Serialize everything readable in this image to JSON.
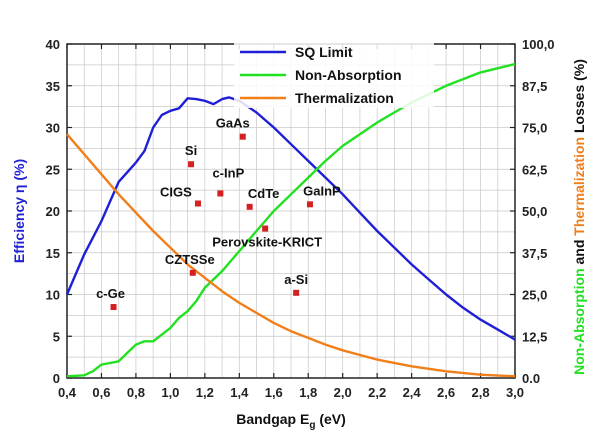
{
  "chart_data": {
    "type": "line",
    "xlabel": "Bandgap E",
    "xlabel_sub": "g",
    "xlabel_unit": " (eV)",
    "ylabel": "Efficiency η (%)",
    "y2label_prefix": "Non-Absorption",
    "y2label_mid": " and ",
    "y2label_suffix": "Thermalization",
    "y2label_end": " Losses (%)",
    "xlim": [
      0.4,
      3.0
    ],
    "ylim": [
      0,
      40
    ],
    "y2lim": [
      0,
      100
    ],
    "grid": true,
    "legend_position": "top-center",
    "x_ticks": [
      "0,4",
      "0,6",
      "0,8",
      "1,0",
      "1,2",
      "1,4",
      "1,6",
      "1,8",
      "2,0",
      "2,2",
      "2,4",
      "2,6",
      "2,8",
      "3,0"
    ],
    "y_ticks": [
      "0",
      "5",
      "10",
      "15",
      "20",
      "25",
      "30",
      "35",
      "40"
    ],
    "y2_ticks": [
      "0.0",
      "12,5",
      "25,0",
      "37,5",
      "50,0",
      "62,5",
      "75,0",
      "87,5",
      "100,0"
    ],
    "colors": {
      "sq": "#1f1fd6",
      "nonabs": "#22e022",
      "therm": "#f07f1a",
      "marker": "#d42020",
      "grid": "#c8c8c8",
      "axis": "#222222"
    },
    "series": [
      {
        "name": "SQ Limit",
        "axis": "left",
        "x": [
          0.4,
          0.5,
          0.6,
          0.7,
          0.8,
          0.85,
          0.9,
          0.95,
          1.0,
          1.05,
          1.1,
          1.15,
          1.2,
          1.25,
          1.3,
          1.34,
          1.4,
          1.45,
          1.5,
          1.6,
          1.7,
          1.8,
          1.9,
          2.0,
          2.1,
          2.2,
          2.3,
          2.4,
          2.5,
          2.6,
          2.7,
          2.8,
          2.9,
          3.0
        ],
        "y": [
          10.0,
          14.8,
          18.8,
          23.5,
          25.8,
          27.2,
          30.0,
          31.5,
          32.0,
          32.3,
          33.5,
          33.4,
          33.2,
          32.8,
          33.4,
          33.6,
          33.2,
          32.5,
          31.8,
          30.0,
          28.0,
          26.0,
          24.0,
          22.0,
          19.8,
          17.6,
          15.6,
          13.6,
          11.8,
          10.0,
          8.4,
          7.0,
          5.8,
          4.6
        ]
      },
      {
        "name": "Non-Absorption",
        "axis": "right",
        "x": [
          0.4,
          0.5,
          0.55,
          0.6,
          0.65,
          0.7,
          0.75,
          0.8,
          0.85,
          0.9,
          0.95,
          1.0,
          1.05,
          1.1,
          1.15,
          1.2,
          1.3,
          1.4,
          1.5,
          1.6,
          1.7,
          1.8,
          1.9,
          2.0,
          2.1,
          2.2,
          2.4,
          2.6,
          2.8,
          3.0
        ],
        "y": [
          0.5,
          0.8,
          2.0,
          4.0,
          4.5,
          5.0,
          7.5,
          10.0,
          11.0,
          11.0,
          13.0,
          15.0,
          18.0,
          20.0,
          23.0,
          27.0,
          32.0,
          38.0,
          44.0,
          50.0,
          55.0,
          60.0,
          65.0,
          69.5,
          73.0,
          76.5,
          82.5,
          87.5,
          91.5,
          94.0
        ]
      },
      {
        "name": "Thermalization",
        "axis": "right",
        "x": [
          0.4,
          0.5,
          0.6,
          0.7,
          0.8,
          0.9,
          1.0,
          1.1,
          1.2,
          1.3,
          1.4,
          1.5,
          1.6,
          1.7,
          1.8,
          1.9,
          2.0,
          2.2,
          2.4,
          2.6,
          2.8,
          3.0
        ],
        "y": [
          73.0,
          67.0,
          61.0,
          55.0,
          49.5,
          44.0,
          39.0,
          34.0,
          30.0,
          26.0,
          22.5,
          19.5,
          16.5,
          14.0,
          12.0,
          10.0,
          8.3,
          5.5,
          3.5,
          2.0,
          1.0,
          0.5
        ]
      }
    ],
    "materials": [
      {
        "label": "c-Ge",
        "x": 0.67,
        "y": 8.5
      },
      {
        "label": "Si",
        "x": 1.12,
        "y": 25.6
      },
      {
        "label": "CIGS",
        "x": 1.16,
        "y": 20.9
      },
      {
        "label": "c-InP",
        "x": 1.29,
        "y": 22.1
      },
      {
        "label": "GaAs",
        "x": 1.42,
        "y": 28.9
      },
      {
        "label": "CdTe",
        "x": 1.46,
        "y": 20.5
      },
      {
        "label": "Perovskite-KRICT",
        "x": 1.55,
        "y": 17.9
      },
      {
        "label": "GaInP",
        "x": 1.81,
        "y": 20.8
      },
      {
        "label": "CZTSSe",
        "x": 1.13,
        "y": 12.6
      },
      {
        "label": "a-Si",
        "x": 1.73,
        "y": 10.2
      }
    ]
  }
}
